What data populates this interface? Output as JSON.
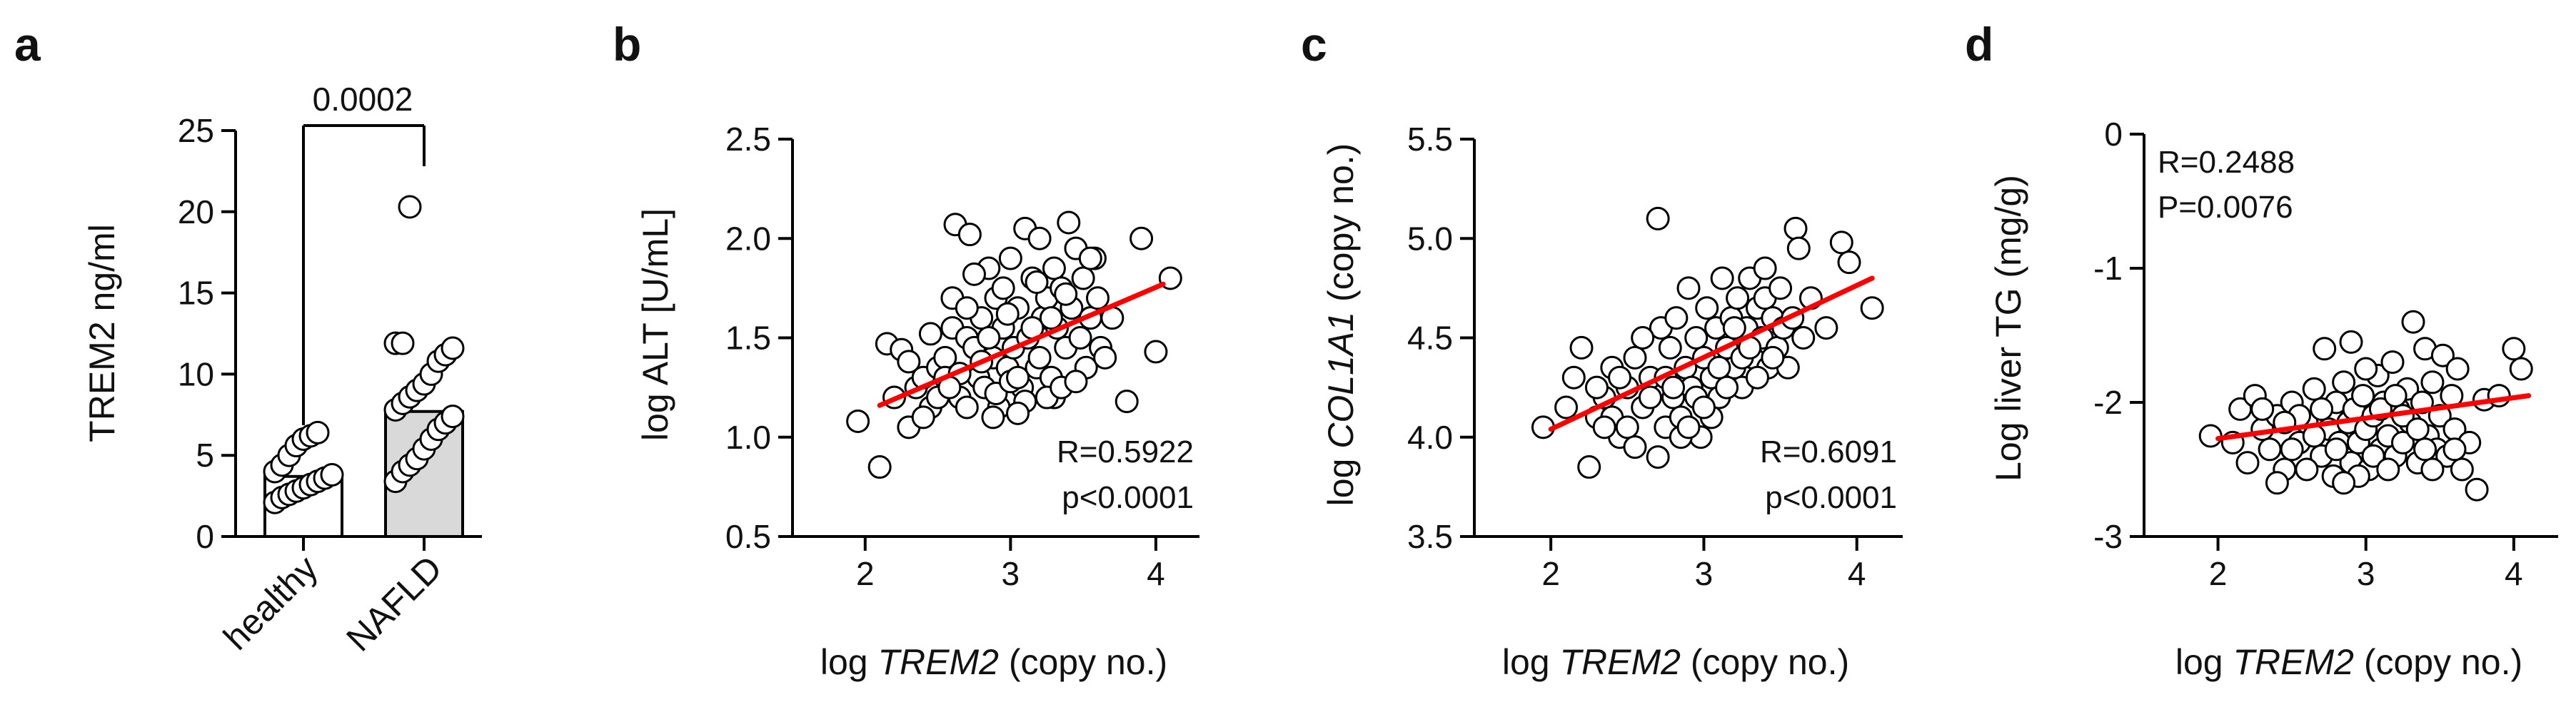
{
  "chart_data": [
    {
      "panel": "a",
      "type": "bar",
      "categories": [
        "healthy",
        "NAFLD"
      ],
      "values": [
        3.7,
        7.7
      ],
      "ylabel": "TREM2 ng/ml",
      "ylim": [
        0,
        25
      ],
      "yticks": [
        0,
        5,
        10,
        15,
        20,
        25
      ],
      "annotation": "0.0002",
      "points": {
        "healthy": [
          2.1,
          2.4,
          2.6,
          2.8,
          3.0,
          3.2,
          3.4,
          3.6,
          3.8,
          4.0,
          4.4,
          5.0,
          5.6,
          6.0,
          6.2,
          6.4
        ],
        "NAFLD": [
          3.4,
          4.0,
          4.4,
          4.8,
          5.4,
          6.0,
          6.6,
          7.0,
          7.4,
          7.8,
          8.2,
          8.6,
          9.0,
          9.4,
          10.0,
          10.8,
          11.2,
          11.6,
          11.9,
          11.9,
          20.3
        ]
      }
    },
    {
      "panel": "b",
      "type": "scatter",
      "xlabel_prefix": "log ",
      "xlabel_italic": "TREM2",
      "xlabel_suffix": " (copy no.)",
      "ylabel": "log ALT [U/mL]",
      "xlim": [
        1.5,
        4.3
      ],
      "ylim": [
        0.5,
        2.5
      ],
      "xticks": [
        2,
        3,
        4
      ],
      "yticks": [
        "0.5",
        "1.0",
        "1.5",
        "2.0",
        "2.5"
      ],
      "stat_r": "R=0.5922",
      "stat_p": "p<0.0001",
      "fit": {
        "x1": 2.1,
        "y1": 1.16,
        "x2": 4.05,
        "y2": 1.77
      },
      "points": [
        [
          1.95,
          1.08
        ],
        [
          2.1,
          0.85
        ],
        [
          2.15,
          1.47
        ],
        [
          2.25,
          1.44
        ],
        [
          2.2,
          1.2
        ],
        [
          2.3,
          1.05
        ],
        [
          2.35,
          1.25
        ],
        [
          2.4,
          1.3
        ],
        [
          2.45,
          1.15
        ],
        [
          2.5,
          1.35
        ],
        [
          2.55,
          1.4
        ],
        [
          2.6,
          1.55
        ],
        [
          2.62,
          2.07
        ],
        [
          2.65,
          1.2
        ],
        [
          2.7,
          1.5
        ],
        [
          2.72,
          2.02
        ],
        [
          2.75,
          1.45
        ],
        [
          2.78,
          1.3
        ],
        [
          2.8,
          1.6
        ],
        [
          2.82,
          1.25
        ],
        [
          2.85,
          1.85
        ],
        [
          2.88,
          1.4
        ],
        [
          2.9,
          1.7
        ],
        [
          2.92,
          1.15
        ],
        [
          2.95,
          1.55
        ],
        [
          2.98,
          1.35
        ],
        [
          3.0,
          1.9
        ],
        [
          3.02,
          1.45
        ],
        [
          3.05,
          1.65
        ],
        [
          3.08,
          1.25
        ],
        [
          3.1,
          2.05
        ],
        [
          3.12,
          1.5
        ],
        [
          3.15,
          1.8
        ],
        [
          3.18,
          1.35
        ],
        [
          3.2,
          2.0
        ],
        [
          3.22,
          1.6
        ],
        [
          3.25,
          1.7
        ],
        [
          3.28,
          1.3
        ],
        [
          3.3,
          1.85
        ],
        [
          3.32,
          1.55
        ],
        [
          3.35,
          1.75
        ],
        [
          3.38,
          1.45
        ],
        [
          3.4,
          2.08
        ],
        [
          3.42,
          1.65
        ],
        [
          3.45,
          1.95
        ],
        [
          3.48,
          1.5
        ],
        [
          3.5,
          1.8
        ],
        [
          3.52,
          1.35
        ],
        [
          3.55,
          1.6
        ],
        [
          3.58,
          1.9
        ],
        [
          3.6,
          1.7
        ],
        [
          3.62,
          1.45
        ],
        [
          3.65,
          1.4
        ],
        [
          3.7,
          1.6
        ],
        [
          3.8,
          1.18
        ],
        [
          3.9,
          2.0
        ],
        [
          4.0,
          1.43
        ],
        [
          4.1,
          1.8
        ],
        [
          2.4,
          1.1
        ],
        [
          2.5,
          1.2
        ],
        [
          2.55,
          1.3
        ],
        [
          2.7,
          1.15
        ],
        [
          2.8,
          1.38
        ],
        [
          2.9,
          1.22
        ],
        [
          3.0,
          1.28
        ],
        [
          3.1,
          1.18
        ],
        [
          3.2,
          1.4
        ],
        [
          3.3,
          1.2
        ],
        [
          2.6,
          1.7
        ],
        [
          2.7,
          1.65
        ],
        [
          2.85,
          1.5
        ],
        [
          2.95,
          1.75
        ],
        [
          3.05,
          1.3
        ],
        [
          3.15,
          1.55
        ],
        [
          3.25,
          1.2
        ],
        [
          3.35,
          1.25
        ],
        [
          2.3,
          1.38
        ],
        [
          2.65,
          1.32
        ],
        [
          2.75,
          1.82
        ],
        [
          3.45,
          1.28
        ],
        [
          3.55,
          1.9
        ],
        [
          2.45,
          1.52
        ],
        [
          2.98,
          1.62
        ],
        [
          3.18,
          1.78
        ],
        [
          3.28,
          1.6
        ],
        [
          2.88,
          1.1
        ],
        [
          3.05,
          1.12
        ],
        [
          2.58,
          1.25
        ],
        [
          3.38,
          1.72
        ]
      ]
    },
    {
      "panel": "c",
      "type": "scatter",
      "xlabel_prefix": "log ",
      "xlabel_italic": "TREM2",
      "xlabel_suffix": " (copy no.)",
      "ylabel_prefix": "log ",
      "ylabel_italic": "COL1A1",
      "ylabel_suffix": " (copy no.)",
      "xlim": [
        1.5,
        4.3
      ],
      "ylim": [
        3.5,
        5.5
      ],
      "xticks": [
        2,
        3,
        4
      ],
      "yticks": [
        "3.5",
        "4.0",
        "4.5",
        "5.0",
        "5.5"
      ],
      "stat_r": "R=0.6091",
      "stat_p": "p<0.0001",
      "fit": {
        "x1": 2.0,
        "y1": 4.04,
        "x2": 4.1,
        "y2": 4.8
      },
      "points": [
        [
          1.95,
          4.05
        ],
        [
          2.1,
          4.15
        ],
        [
          2.15,
          4.3
        ],
        [
          2.2,
          4.45
        ],
        [
          2.25,
          3.85
        ],
        [
          2.3,
          4.1
        ],
        [
          2.35,
          4.2
        ],
        [
          2.4,
          4.35
        ],
        [
          2.45,
          4.0
        ],
        [
          2.5,
          4.25
        ],
        [
          2.55,
          4.4
        ],
        [
          2.6,
          4.15
        ],
        [
          2.65,
          4.3
        ],
        [
          2.7,
          3.9
        ],
        [
          2.72,
          4.55
        ],
        [
          2.75,
          4.05
        ],
        [
          2.78,
          4.45
        ],
        [
          2.8,
          4.2
        ],
        [
          2.82,
          4.6
        ],
        [
          2.85,
          4.1
        ],
        [
          2.88,
          4.35
        ],
        [
          2.9,
          4.75
        ],
        [
          2.92,
          4.25
        ],
        [
          2.95,
          4.5
        ],
        [
          2.98,
          4.0
        ],
        [
          3.0,
          4.4
        ],
        [
          3.02,
          4.65
        ],
        [
          3.05,
          4.3
        ],
        [
          3.08,
          4.55
        ],
        [
          3.1,
          4.2
        ],
        [
          3.12,
          4.8
        ],
        [
          3.15,
          4.45
        ],
        [
          3.18,
          4.6
        ],
        [
          3.2,
          4.35
        ],
        [
          3.22,
          4.7
        ],
        [
          3.25,
          4.25
        ],
        [
          3.28,
          4.55
        ],
        [
          3.3,
          4.8
        ],
        [
          3.32,
          4.4
        ],
        [
          3.35,
          4.65
        ],
        [
          3.38,
          4.5
        ],
        [
          3.4,
          4.7
        ],
        [
          3.42,
          4.35
        ],
        [
          3.45,
          4.6
        ],
        [
          3.48,
          4.45
        ],
        [
          3.5,
          4.75
        ],
        [
          3.52,
          4.55
        ],
        [
          3.55,
          4.35
        ],
        [
          3.58,
          4.6
        ],
        [
          3.6,
          5.05
        ],
        [
          3.62,
          4.95
        ],
        [
          3.65,
          4.5
        ],
        [
          3.7,
          4.7
        ],
        [
          3.8,
          4.55
        ],
        [
          3.9,
          4.98
        ],
        [
          3.95,
          4.88
        ],
        [
          4.1,
          4.65
        ],
        [
          2.7,
          5.1
        ],
        [
          2.4,
          4.1
        ],
        [
          2.5,
          4.05
        ],
        [
          2.6,
          4.5
        ],
        [
          2.75,
          4.3
        ],
        [
          2.85,
          4.0
        ],
        [
          2.95,
          4.2
        ],
        [
          3.05,
          4.1
        ],
        [
          3.15,
          4.25
        ],
        [
          3.25,
          4.4
        ],
        [
          3.35,
          4.3
        ],
        [
          2.55,
          3.95
        ],
        [
          2.65,
          4.2
        ],
        [
          2.8,
          4.25
        ],
        [
          3.0,
          4.15
        ],
        [
          3.1,
          4.35
        ],
        [
          3.2,
          4.55
        ],
        [
          3.3,
          4.45
        ],
        [
          3.45,
          4.4
        ],
        [
          2.35,
          4.05
        ],
        [
          2.9,
          4.05
        ],
        [
          3.4,
          4.85
        ],
        [
          2.3,
          4.25
        ],
        [
          2.45,
          4.3
        ]
      ]
    },
    {
      "panel": "d",
      "type": "scatter",
      "xlabel_prefix": "log ",
      "xlabel_italic": "TREM2",
      "xlabel_suffix": " (copy no.)",
      "ylabel": "Log liver TG (mg/g)",
      "xlim": [
        1.5,
        4.3
      ],
      "ylim": [
        -3,
        0
      ],
      "xticks": [
        2,
        3,
        4
      ],
      "yticks": [
        "-3",
        "-2",
        "-1",
        "0"
      ],
      "stat_r": "R=0.2488",
      "stat_p": "P=0.0076",
      "fit": {
        "x1": 2.0,
        "y1": -2.27,
        "x2": 4.1,
        "y2": -1.95
      },
      "points": [
        [
          1.95,
          -2.25
        ],
        [
          2.1,
          -2.3
        ],
        [
          2.15,
          -2.05
        ],
        [
          2.2,
          -2.45
        ],
        [
          2.25,
          -1.95
        ],
        [
          2.3,
          -2.2
        ],
        [
          2.35,
          -2.35
        ],
        [
          2.4,
          -2.1
        ],
        [
          2.45,
          -2.5
        ],
        [
          2.5,
          -2.0
        ],
        [
          2.55,
          -2.3
        ],
        [
          2.6,
          -2.15
        ],
        [
          2.65,
          -1.9
        ],
        [
          2.7,
          -2.4
        ],
        [
          2.72,
          -1.6
        ],
        [
          2.75,
          -2.2
        ],
        [
          2.78,
          -2.55
        ],
        [
          2.8,
          -2.0
        ],
        [
          2.82,
          -2.3
        ],
        [
          2.85,
          -1.85
        ],
        [
          2.88,
          -2.15
        ],
        [
          2.9,
          -2.45
        ],
        [
          2.92,
          -2.05
        ],
        [
          2.95,
          -2.3
        ],
        [
          2.98,
          -1.95
        ],
        [
          3.0,
          -2.2
        ],
        [
          3.02,
          -2.5
        ],
        [
          3.05,
          -2.1
        ],
        [
          3.08,
          -1.8
        ],
        [
          3.1,
          -2.35
        ],
        [
          3.12,
          -2.0
        ],
        [
          3.15,
          -2.25
        ],
        [
          3.18,
          -1.7
        ],
        [
          3.2,
          -2.4
        ],
        [
          3.22,
          -2.05
        ],
        [
          3.25,
          -2.3
        ],
        [
          3.28,
          -1.9
        ],
        [
          3.3,
          -2.15
        ],
        [
          3.32,
          -1.4
        ],
        [
          3.35,
          -2.45
        ],
        [
          3.38,
          -2.0
        ],
        [
          3.4,
          -1.6
        ],
        [
          3.42,
          -2.25
        ],
        [
          3.45,
          -1.85
        ],
        [
          3.48,
          -2.35
        ],
        [
          3.5,
          -2.1
        ],
        [
          3.52,
          -1.65
        ],
        [
          3.55,
          -2.4
        ],
        [
          3.58,
          -1.95
        ],
        [
          3.6,
          -2.2
        ],
        [
          3.62,
          -1.75
        ],
        [
          3.65,
          -2.5
        ],
        [
          3.7,
          -2.3
        ],
        [
          3.75,
          -2.65
        ],
        [
          3.8,
          -1.98
        ],
        [
          3.9,
          -1.95
        ],
        [
          4.0,
          -1.6
        ],
        [
          4.05,
          -1.75
        ],
        [
          2.9,
          -1.55
        ],
        [
          3.0,
          -1.75
        ],
        [
          2.4,
          -2.6
        ],
        [
          2.5,
          -2.35
        ],
        [
          2.6,
          -2.5
        ],
        [
          2.7,
          -2.05
        ],
        [
          2.8,
          -2.35
        ],
        [
          2.95,
          -2.55
        ],
        [
          3.05,
          -2.4
        ],
        [
          3.15,
          -2.5
        ],
        [
          3.25,
          -2.1
        ],
        [
          3.35,
          -2.2
        ],
        [
          2.55,
          -2.1
        ],
        [
          2.65,
          -2.25
        ],
        [
          2.85,
          -2.6
        ],
        [
          3.45,
          -2.5
        ],
        [
          3.6,
          -2.35
        ],
        [
          2.3,
          -2.05
        ],
        [
          2.45,
          -2.15
        ],
        [
          3.1,
          -2.05
        ],
        [
          3.2,
          -1.95
        ],
        [
          3.4,
          -2.35
        ]
      ]
    }
  ]
}
